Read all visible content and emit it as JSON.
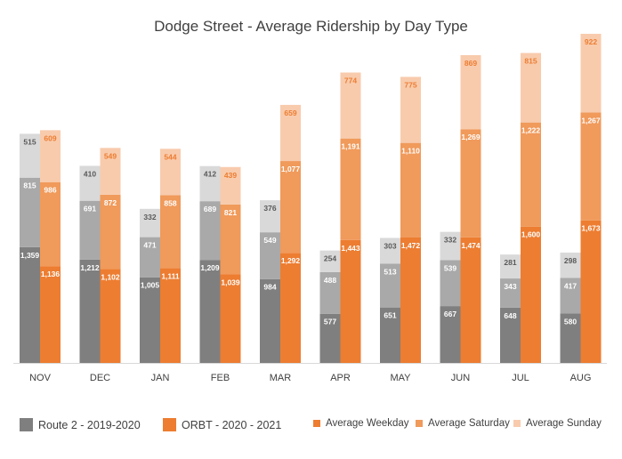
{
  "chart_data": {
    "type": "bar",
    "title": "Dodge Street - Average Ridership by Day Type",
    "categories": [
      "NOV",
      "DEC",
      "JAN",
      "FEB",
      "MAR",
      "APR",
      "MAY",
      "JUN",
      "JUL",
      "AUG"
    ],
    "groups": [
      {
        "name": "Route 2 - 2019-2020",
        "color": "#7f7f7f",
        "stacks": [
          {
            "name": "Average Weekday",
            "color": "#7f7f7f",
            "label_color": "#ffffff",
            "values": [
              1359,
              1212,
              1005,
              1209,
              984,
              577,
              651,
              667,
              648,
              580
            ],
            "labels": [
              "1,359",
              "1,212",
              "1,005",
              "1,209",
              "984",
              "577",
              "651",
              "667",
              "648",
              "580"
            ]
          },
          {
            "name": "Average Saturday",
            "color": "#a9a9a9",
            "label_color": "#ffffff",
            "values": [
              815,
              691,
              471,
              689,
              549,
              488,
              513,
              539,
              343,
              417
            ],
            "labels": [
              "815",
              "691",
              "471",
              "689",
              "549",
              "488",
              "513",
              "539",
              "343",
              "417"
            ]
          },
          {
            "name": "Average Sunday",
            "color": "#d9d9d9",
            "label_color": "#595959",
            "values": [
              515,
              410,
              332,
              412,
              376,
              254,
              303,
              332,
              281,
              298
            ],
            "labels": [
              "515",
              "410",
              "332",
              "412",
              "376",
              "254",
              "303",
              "332",
              "281",
              "298"
            ]
          }
        ]
      },
      {
        "name": "ORBT - 2020 - 2021",
        "color": "#ed7d31",
        "stacks": [
          {
            "name": "Average Weekday",
            "color": "#ed7d31",
            "label_color": "#ffffff",
            "values": [
              1136,
              1102,
              1111,
              1039,
              1292,
              1443,
              1472,
              1474,
              1600,
              1673
            ],
            "labels": [
              "1,136",
              "1,102",
              "1,111",
              "1,039",
              "1,292",
              "1,443",
              "1,472",
              "1,474",
              "1,600",
              "1,673"
            ]
          },
          {
            "name": "Average Saturday",
            "color": "#f09a5b",
            "label_color": "#ffffff",
            "values": [
              986,
              872,
              858,
              821,
              1077,
              1191,
              1110,
              1269,
              1222,
              1267
            ],
            "labels": [
              "986",
              "872",
              "858",
              "821",
              "1,077",
              "1,191",
              "1,110",
              "1,269",
              "1,222",
              "1,267"
            ]
          },
          {
            "name": "Average Sunday",
            "color": "#f8cbad",
            "label_color": "#ed7d31",
            "values": [
              609,
              549,
              544,
              439,
              659,
              774,
              775,
              869,
              815,
              922
            ],
            "labels": [
              "609",
              "549",
              "544",
              "439",
              "659",
              "774",
              "775",
              "869",
              "815",
              "922"
            ]
          }
        ]
      }
    ],
    "ylim": [
      0,
      3800
    ],
    "grid": false,
    "legend_position": "bottom"
  },
  "legend": {
    "route2": {
      "label": "Route 2 - 2019-2020",
      "color": "#7f7f7f"
    },
    "orbt": {
      "label": "ORBT - 2020 - 2021",
      "color": "#ed7d31"
    },
    "weekday": {
      "label": "Average Weekday",
      "color": "#ed7d31"
    },
    "saturday": {
      "label": "Average Saturday",
      "color": "#f09a5b"
    },
    "sunday": {
      "label": "Average Sunday",
      "color": "#f8cbad"
    }
  }
}
